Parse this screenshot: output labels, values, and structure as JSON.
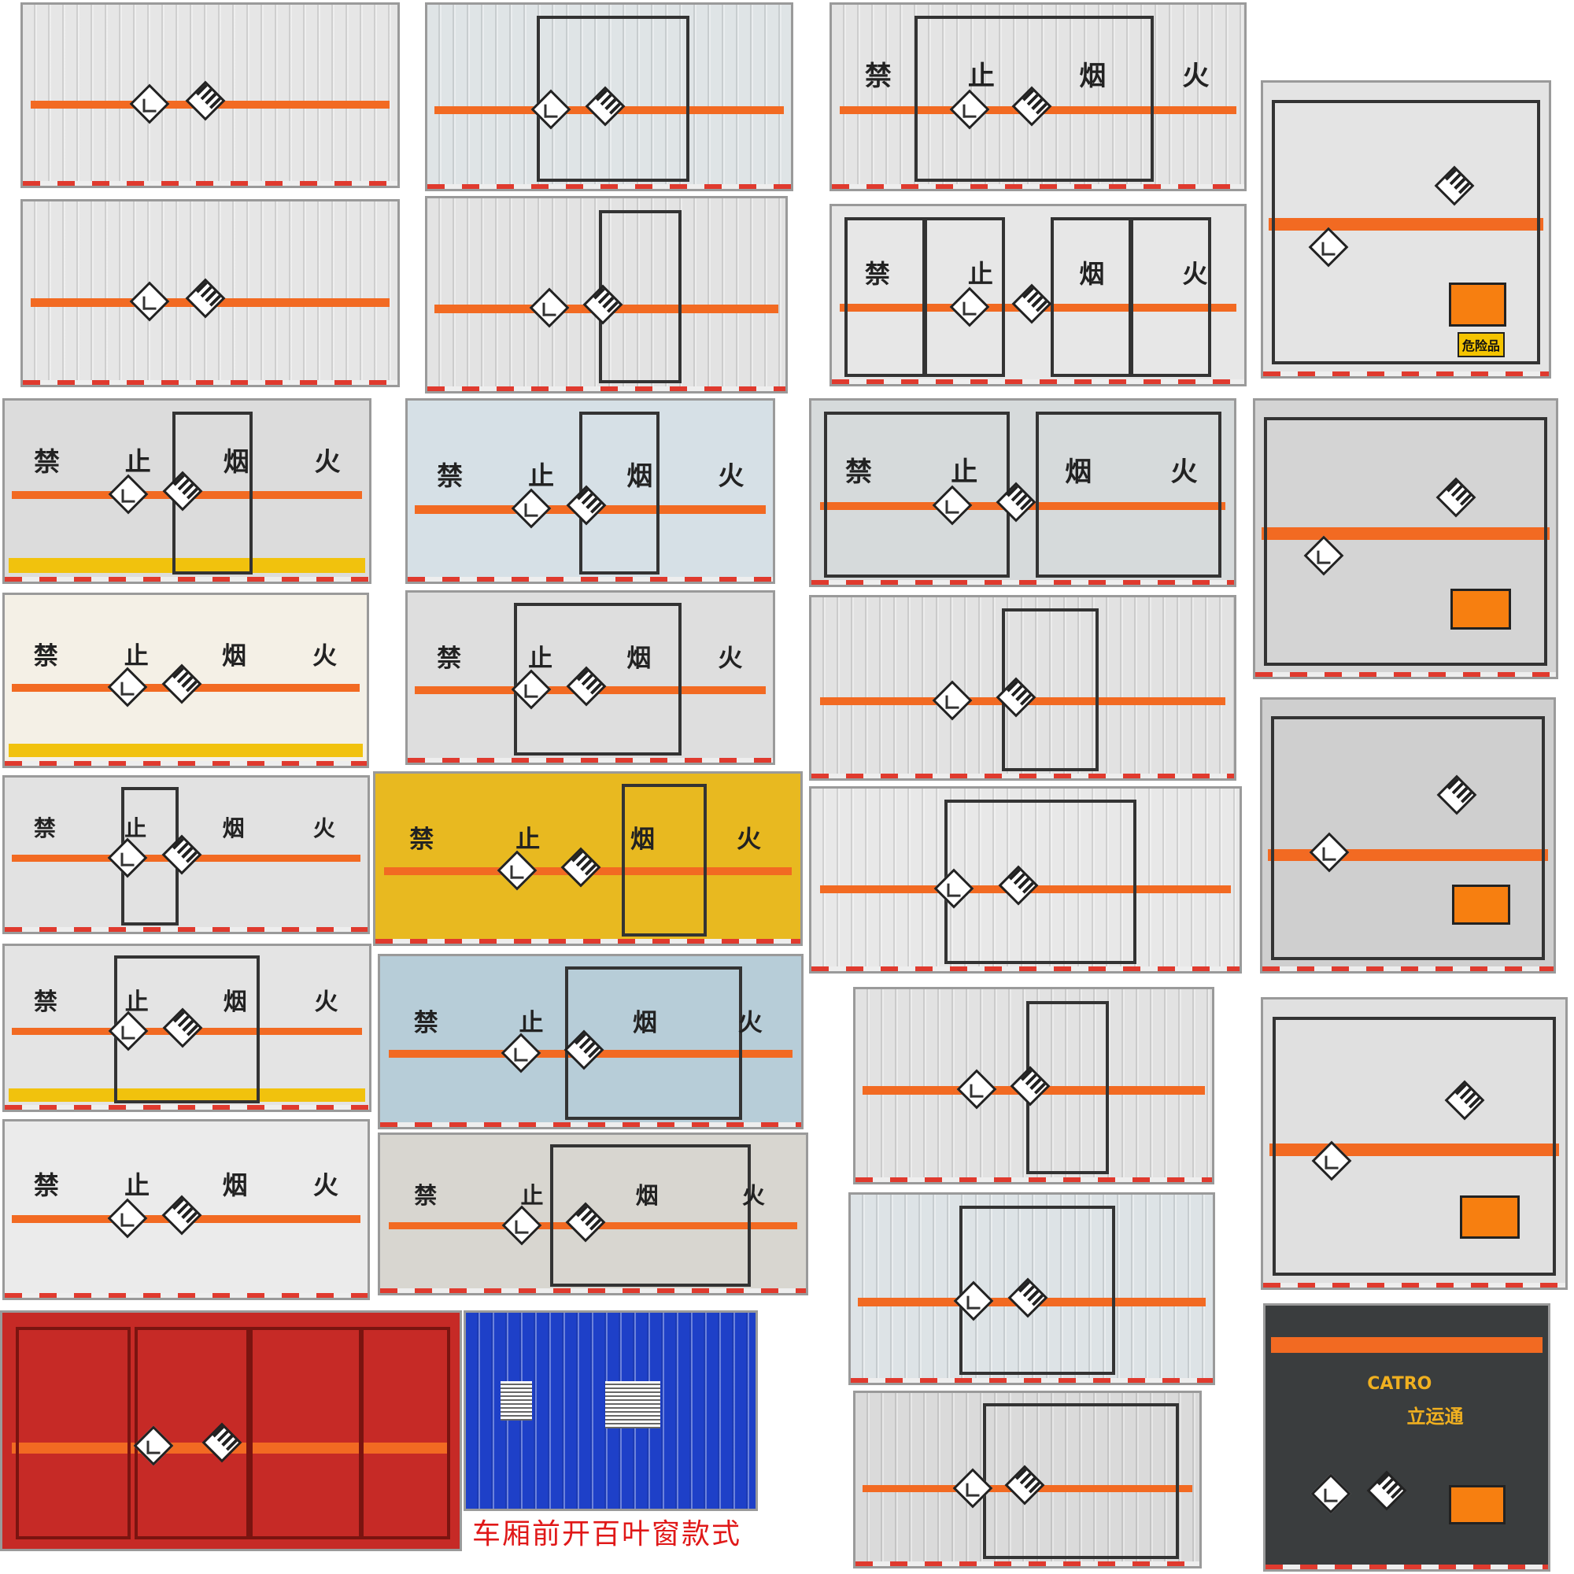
{
  "signs": [
    "禁",
    "止",
    "烟",
    "火"
  ],
  "caption": "车厢前开百叶窗款式",
  "hazard_tag": "危险品",
  "brand_logo": "CATRO",
  "brand_name": "立运通",
  "colors": {
    "stripe_orange": "#f26a22",
    "warning_yellow": "#f1c20d",
    "hazard_plate_orange": "#f77f10",
    "caption_red": "#e01818",
    "red_box": "#c62a26",
    "blue_box": "#1e40c8"
  },
  "icons": [
    "environment-hazard-diamond-icon",
    "class9-misc-hazard-diamond-icon"
  ]
}
